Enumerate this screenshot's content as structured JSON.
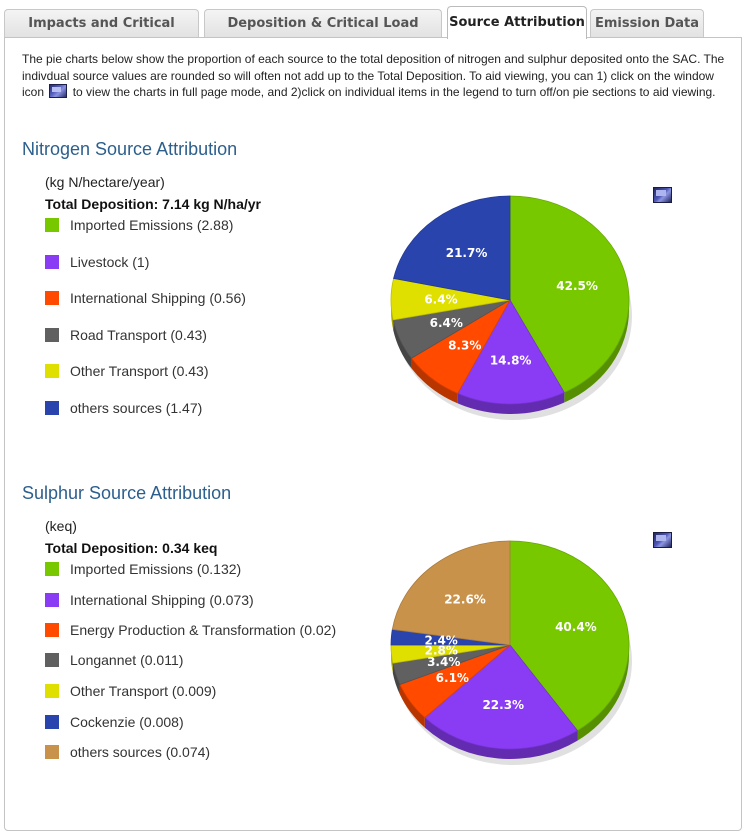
{
  "tabs": [
    {
      "label": "Impacts and Critical Loads",
      "active": false
    },
    {
      "label": "Deposition & Critical Load Graphs",
      "active": false
    },
    {
      "label": "Source Attribution",
      "active": true
    },
    {
      "label": "Emission Data",
      "active": false
    }
  ],
  "intro": {
    "part1": "The pie charts below show the proportion of each source to the total deposition of nitrogen and sulphur deposited onto the SAC. The indivdual source values are rounded so will often not add up to the Total Deposition. To aid viewing, you can 1) click on the window icon",
    "part2": "to view the charts in full page mode, and 2)click on individual items in the legend to turn off/on pie sections to aid viewing."
  },
  "icons": {
    "fullpage": "window-icon"
  },
  "chart_data": [
    {
      "type": "pie",
      "title": "Nitrogen Source Attribution",
      "unit": "(kg N/hectare/year)",
      "total": "Total Deposition: 7.14 kg N/ha/yr",
      "legend_placement": "left",
      "slices": [
        {
          "legend": "Imported Emissions (2.88)",
          "value": 2.88,
          "percent": 42.5,
          "label": "42.5%",
          "color": "#78c800"
        },
        {
          "legend": "Livestock (1)",
          "value": 1,
          "percent": 14.8,
          "label": "14.8%",
          "color": "#8a3cf5"
        },
        {
          "legend": "International Shipping (0.56)",
          "value": 0.56,
          "percent": 8.3,
          "label": "8.3%",
          "color": "#ff4a00"
        },
        {
          "legend": "Road Transport (0.43)",
          "value": 0.43,
          "percent": 6.4,
          "label": "6.4%",
          "color": "#606060"
        },
        {
          "legend": "Other Transport (0.43)",
          "value": 0.43,
          "percent": 6.4,
          "label": "6.4%",
          "color": "#e0e000"
        },
        {
          "legend": "others sources (1.47)",
          "value": 1.47,
          "percent": 21.7,
          "label": "21.7%",
          "color": "#2a44ad"
        }
      ]
    },
    {
      "type": "pie",
      "title": "Sulphur Source Attribution",
      "unit": "(keq)",
      "total": "Total Deposition: 0.34 keq",
      "legend_placement": "left",
      "slices": [
        {
          "legend": "Imported Emissions (0.132)",
          "value": 0.132,
          "percent": 40.4,
          "label": "40.4%",
          "color": "#78c800"
        },
        {
          "legend": "International Shipping (0.073)",
          "value": 0.073,
          "percent": 22.3,
          "label": "22.3%",
          "color": "#8a3cf5"
        },
        {
          "legend": "Energy Production & Transformation (0.02)",
          "value": 0.02,
          "percent": 6.1,
          "label": "6.1%",
          "color": "#ff4a00"
        },
        {
          "legend": "Longannet (0.011)",
          "value": 0.011,
          "percent": 3.4,
          "label": "3.4%",
          "color": "#606060"
        },
        {
          "legend": "Other Transport (0.009)",
          "value": 0.009,
          "percent": 2.8,
          "label": "2.8%",
          "color": "#e0e000"
        },
        {
          "legend": "Cockenzie (0.008)",
          "value": 0.008,
          "percent": 2.4,
          "label": "2.4%",
          "color": "#2a44ad"
        },
        {
          "legend": "others sources (0.074)",
          "value": 0.074,
          "percent": 22.6,
          "label": "22.6%",
          "color": "#c8924a"
        }
      ]
    }
  ]
}
